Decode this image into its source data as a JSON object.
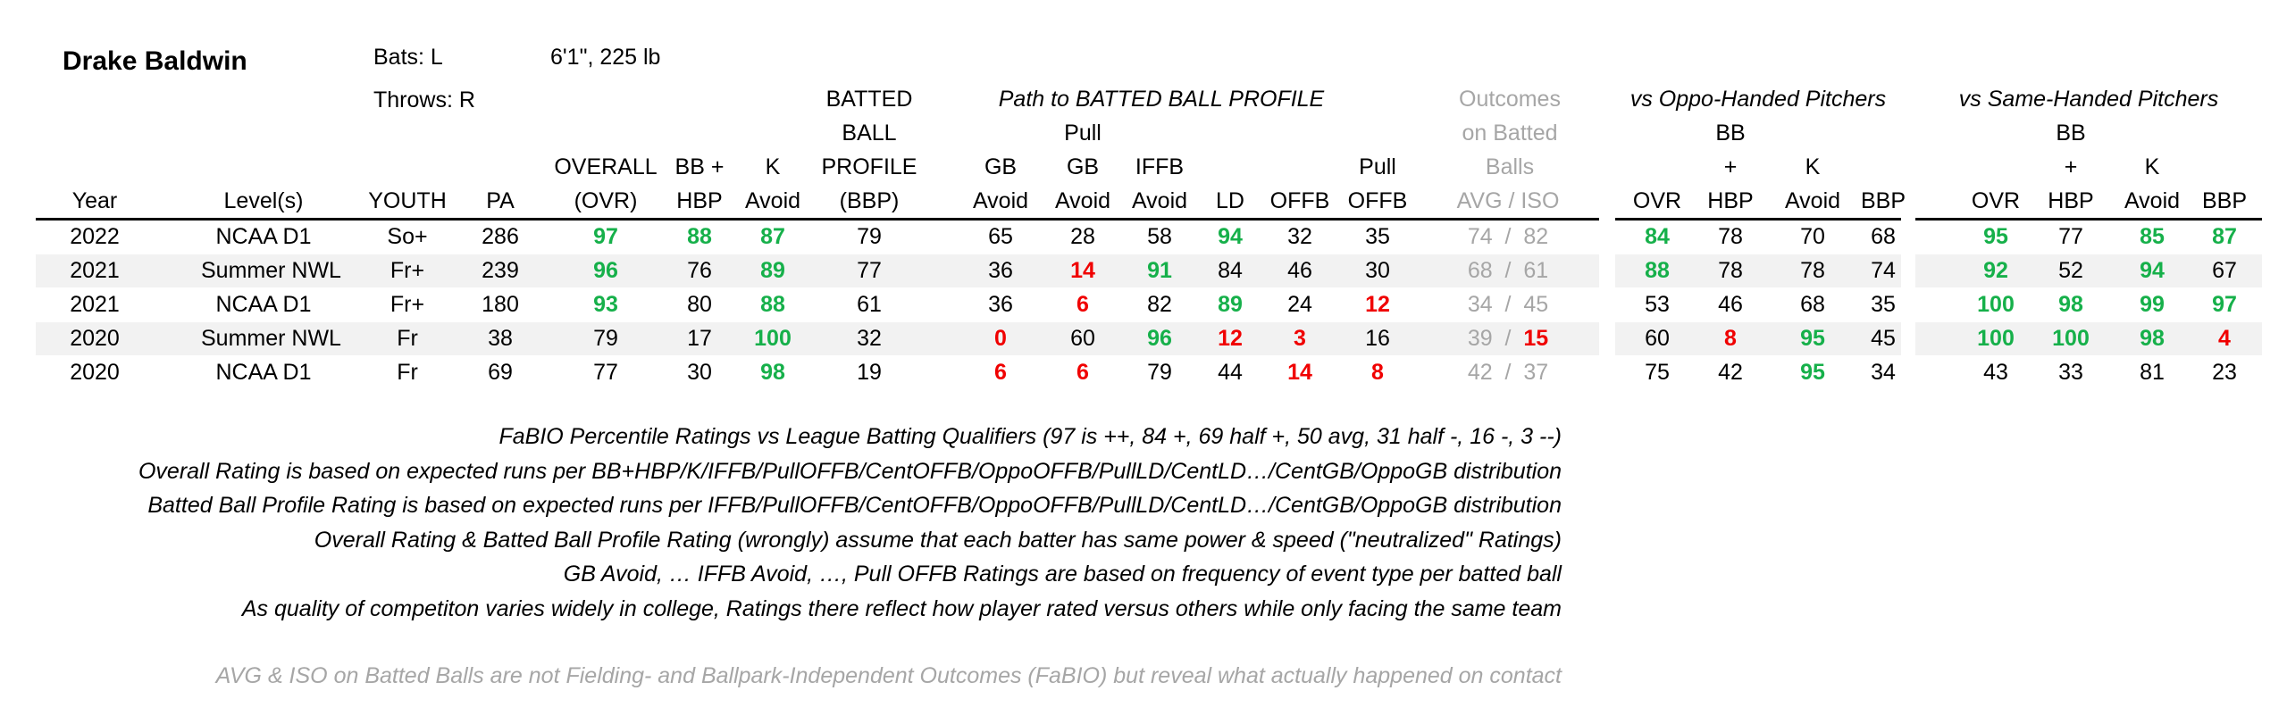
{
  "player": {
    "name": "Drake Baldwin",
    "bats": "Bats: L",
    "throws": "Throws: R",
    "size": "6'1\", 225 lb"
  },
  "group_headers": {
    "path": "Path to BATTED BALL PROFILE",
    "outcomes_1": "Outcomes",
    "outcomes_2": "on Batted",
    "outcomes_3": "Balls",
    "vs_oppo": "vs Oppo-Handed Pitchers",
    "vs_same": "vs Same-Handed Pitchers"
  },
  "headers": {
    "year": "Year",
    "level": "Level(s)",
    "youth": "YOUTH",
    "pa": "PA",
    "ovr_1": "OVERALL",
    "ovr_2": "(OVR)",
    "bbhbp_1": "BB +",
    "bbhbp_2": "HBP",
    "k_1": "K",
    "k_2": "Avoid",
    "bbp_1": "BATTED",
    "bbp_2": "BALL",
    "bbp_3": "PROFILE",
    "bbp_4": "(BBP)",
    "gb_1": "GB",
    "gb_2": "Avoid",
    "pgb_1": "Pull",
    "pgb_2": "GB",
    "pgb_3": "Avoid",
    "iffb_1": "IFFB",
    "iffb_2": "Avoid",
    "ld": "LD",
    "offb": "OFFB",
    "poffb_1": "Pull",
    "poffb_2": "OFFB",
    "avg_iso": "AVG  /  ISO",
    "split_ovr": "OVR",
    "split_bb_1": "BB",
    "split_bb_2": "+",
    "split_bb_3": "HBP",
    "split_k_1": "K",
    "split_k_2": "Avoid",
    "split_bbp": "BBP"
  },
  "colors": {
    "green": "#16b04a",
    "red": "#f00000",
    "gray": "#a6a6a6",
    "band": "#f2f2f2"
  },
  "rows": [
    {
      "year": "2022",
      "level": "NCAA D1",
      "youth": "So+",
      "pa": "286",
      "ovr": {
        "v": "97",
        "c": "green"
      },
      "bbhbp": {
        "v": "88",
        "c": "green"
      },
      "k": {
        "v": "87",
        "c": "green"
      },
      "bbp": {
        "v": "79",
        "c": ""
      },
      "gb": {
        "v": "65",
        "c": ""
      },
      "pgb": {
        "v": "28",
        "c": ""
      },
      "iffb": {
        "v": "58",
        "c": ""
      },
      "ld": {
        "v": "94",
        "c": "green"
      },
      "offb": {
        "v": "32",
        "c": ""
      },
      "poffb": {
        "v": "35",
        "c": ""
      },
      "avg": {
        "v": "74",
        "c": "gray"
      },
      "iso": {
        "v": "82",
        "c": "gray"
      },
      "o_ovr": {
        "v": "84",
        "c": "green"
      },
      "o_bb": {
        "v": "78",
        "c": ""
      },
      "o_k": {
        "v": "70",
        "c": ""
      },
      "o_bbp": {
        "v": "68",
        "c": ""
      },
      "s_ovr": {
        "v": "95",
        "c": "green"
      },
      "s_bb": {
        "v": "77",
        "c": ""
      },
      "s_k": {
        "v": "85",
        "c": "green"
      },
      "s_bbp": {
        "v": "87",
        "c": "green"
      }
    },
    {
      "year": "2021",
      "level": "Summer NWL",
      "youth": "Fr+",
      "pa": "239",
      "ovr": {
        "v": "96",
        "c": "green"
      },
      "bbhbp": {
        "v": "76",
        "c": ""
      },
      "k": {
        "v": "89",
        "c": "green"
      },
      "bbp": {
        "v": "77",
        "c": ""
      },
      "gb": {
        "v": "36",
        "c": ""
      },
      "pgb": {
        "v": "14",
        "c": "red"
      },
      "iffb": {
        "v": "91",
        "c": "green"
      },
      "ld": {
        "v": "84",
        "c": ""
      },
      "offb": {
        "v": "46",
        "c": ""
      },
      "poffb": {
        "v": "30",
        "c": ""
      },
      "avg": {
        "v": "68",
        "c": "gray"
      },
      "iso": {
        "v": "61",
        "c": "gray"
      },
      "o_ovr": {
        "v": "88",
        "c": "green"
      },
      "o_bb": {
        "v": "78",
        "c": ""
      },
      "o_k": {
        "v": "78",
        "c": ""
      },
      "o_bbp": {
        "v": "74",
        "c": ""
      },
      "s_ovr": {
        "v": "92",
        "c": "green"
      },
      "s_bb": {
        "v": "52",
        "c": ""
      },
      "s_k": {
        "v": "94",
        "c": "green"
      },
      "s_bbp": {
        "v": "67",
        "c": ""
      }
    },
    {
      "year": "2021",
      "level": "NCAA D1",
      "youth": "Fr+",
      "pa": "180",
      "ovr": {
        "v": "93",
        "c": "green"
      },
      "bbhbp": {
        "v": "80",
        "c": ""
      },
      "k": {
        "v": "88",
        "c": "green"
      },
      "bbp": {
        "v": "61",
        "c": ""
      },
      "gb": {
        "v": "36",
        "c": ""
      },
      "pgb": {
        "v": "6",
        "c": "red"
      },
      "iffb": {
        "v": "82",
        "c": ""
      },
      "ld": {
        "v": "89",
        "c": "green"
      },
      "offb": {
        "v": "24",
        "c": ""
      },
      "poffb": {
        "v": "12",
        "c": "red"
      },
      "avg": {
        "v": "34",
        "c": "gray"
      },
      "iso": {
        "v": "45",
        "c": "gray"
      },
      "o_ovr": {
        "v": "53",
        "c": ""
      },
      "o_bb": {
        "v": "46",
        "c": ""
      },
      "o_k": {
        "v": "68",
        "c": ""
      },
      "o_bbp": {
        "v": "35",
        "c": ""
      },
      "s_ovr": {
        "v": "100",
        "c": "green"
      },
      "s_bb": {
        "v": "98",
        "c": "green"
      },
      "s_k": {
        "v": "99",
        "c": "green"
      },
      "s_bbp": {
        "v": "97",
        "c": "green"
      }
    },
    {
      "year": "2020",
      "level": "Summer NWL",
      "youth": "Fr",
      "pa": "38",
      "ovr": {
        "v": "79",
        "c": ""
      },
      "bbhbp": {
        "v": "17",
        "c": ""
      },
      "k": {
        "v": "100",
        "c": "green"
      },
      "bbp": {
        "v": "32",
        "c": ""
      },
      "gb": {
        "v": "0",
        "c": "red"
      },
      "pgb": {
        "v": "60",
        "c": ""
      },
      "iffb": {
        "v": "96",
        "c": "green"
      },
      "ld": {
        "v": "12",
        "c": "red"
      },
      "offb": {
        "v": "3",
        "c": "red"
      },
      "poffb": {
        "v": "16",
        "c": ""
      },
      "avg": {
        "v": "39",
        "c": "gray"
      },
      "iso": {
        "v": "15",
        "c": "red"
      },
      "o_ovr": {
        "v": "60",
        "c": ""
      },
      "o_bb": {
        "v": "8",
        "c": "red"
      },
      "o_k": {
        "v": "95",
        "c": "green"
      },
      "o_bbp": {
        "v": "45",
        "c": ""
      },
      "s_ovr": {
        "v": "100",
        "c": "green"
      },
      "s_bb": {
        "v": "100",
        "c": "green"
      },
      "s_k": {
        "v": "98",
        "c": "green"
      },
      "s_bbp": {
        "v": "4",
        "c": "red"
      }
    },
    {
      "year": "2020",
      "level": "NCAA D1",
      "youth": "Fr",
      "pa": "69",
      "ovr": {
        "v": "77",
        "c": ""
      },
      "bbhbp": {
        "v": "30",
        "c": ""
      },
      "k": {
        "v": "98",
        "c": "green"
      },
      "bbp": {
        "v": "19",
        "c": ""
      },
      "gb": {
        "v": "6",
        "c": "red"
      },
      "pgb": {
        "v": "6",
        "c": "red"
      },
      "iffb": {
        "v": "79",
        "c": ""
      },
      "ld": {
        "v": "44",
        "c": ""
      },
      "offb": {
        "v": "14",
        "c": "red"
      },
      "poffb": {
        "v": "8",
        "c": "red"
      },
      "avg": {
        "v": "42",
        "c": "gray"
      },
      "iso": {
        "v": "37",
        "c": "gray"
      },
      "o_ovr": {
        "v": "75",
        "c": ""
      },
      "o_bb": {
        "v": "42",
        "c": ""
      },
      "o_k": {
        "v": "95",
        "c": "green"
      },
      "o_bbp": {
        "v": "34",
        "c": ""
      },
      "s_ovr": {
        "v": "43",
        "c": ""
      },
      "s_bb": {
        "v": "33",
        "c": ""
      },
      "s_k": {
        "v": "81",
        "c": ""
      },
      "s_bbp": {
        "v": "23",
        "c": ""
      }
    }
  ],
  "notes": [
    "FaBIO Percentile Ratings vs League Batting Qualifiers (97 is ++, 84 +, 69 half +, 50 avg, 31 half -, 16 -, 3 --)",
    "Overall Rating is based on expected runs per BB+HBP/K/IFFB/PullOFFB/CentOFFB/OppoOFFB/PullLD/CentLD…/CentGB/OppoGB distribution",
    "Batted Ball Profile Rating is based on expected runs per IFFB/PullOFFB/CentOFFB/OppoOFFB/PullLD/CentLD…/CentGB/OppoGB distribution",
    "Overall Rating & Batted Ball Profile Rating (wrongly) assume that each batter has same power & speed (\"neutralized\" Ratings)",
    "GB Avoid, … IFFB Avoid, …, Pull OFFB Ratings are based on frequency of event type per batted ball",
    "As quality of competiton varies widely in college, Ratings there reflect how player rated versus others while only facing the same team"
  ],
  "footnote": "AVG & ISO on Batted Balls are not Fielding- and Ballpark-Independent Outcomes (FaBIO) but reveal what actually happened on contact"
}
